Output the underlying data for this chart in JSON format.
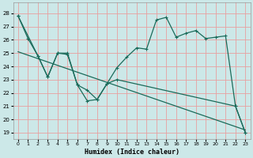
{
  "xlabel": "Humidex (Indice chaleur)",
  "bg_color": "#cce8e8",
  "line_color": "#1a6b5a",
  "grid_color": "#e8a0a0",
  "xlim": [
    -0.5,
    23.5
  ],
  "ylim": [
    18.5,
    28.8
  ],
  "yticks": [
    19,
    20,
    21,
    22,
    23,
    24,
    25,
    26,
    27,
    28
  ],
  "xticks": [
    0,
    1,
    2,
    3,
    4,
    5,
    6,
    7,
    8,
    9,
    10,
    11,
    12,
    13,
    14,
    15,
    16,
    17,
    18,
    19,
    20,
    21,
    22,
    23
  ],
  "series1_x": [
    0,
    1,
    2,
    3,
    4,
    5,
    6,
    7,
    8,
    9,
    10,
    11,
    12,
    13,
    14,
    15,
    16,
    17,
    18,
    19,
    20,
    21,
    22,
    23
  ],
  "series1_y": [
    27.8,
    26.1,
    24.8,
    23.2,
    25.0,
    24.9,
    22.6,
    21.4,
    21.5,
    22.7,
    23.9,
    24.7,
    25.4,
    25.3,
    27.5,
    27.7,
    26.2,
    26.5,
    26.7,
    26.1,
    26.2,
    26.3,
    21.0,
    19.0
  ],
  "series2_x": [
    0,
    2,
    3,
    4,
    5,
    6,
    7,
    8,
    9,
    10,
    22,
    23
  ],
  "series2_y": [
    27.8,
    24.8,
    23.2,
    25.0,
    25.0,
    22.6,
    22.2,
    21.5,
    22.7,
    23.0,
    21.0,
    19.0
  ],
  "series3_x": [
    0,
    23
  ],
  "series3_y": [
    25.1,
    19.2
  ]
}
